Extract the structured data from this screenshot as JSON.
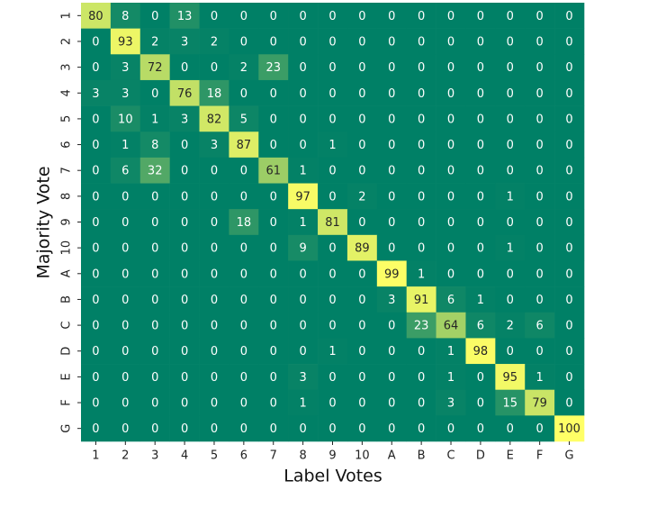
{
  "chart_data": {
    "type": "heatmap",
    "colormap": "summer",
    "x_label": "Label Votes",
    "y_label": "Majority Vote",
    "x_categories": [
      "1",
      "2",
      "3",
      "4",
      "5",
      "6",
      "7",
      "8",
      "9",
      "10",
      "A",
      "B",
      "C",
      "D",
      "E",
      "F",
      "G"
    ],
    "y_categories": [
      "1",
      "2",
      "3",
      "4",
      "5",
      "6",
      "7",
      "8",
      "9",
      "10",
      "A",
      "B",
      "C",
      "D",
      "E",
      "F",
      "G"
    ],
    "values": [
      [
        80,
        8,
        0,
        13,
        0,
        0,
        0,
        0,
        0,
        0,
        0,
        0,
        0,
        0,
        0,
        0,
        0
      ],
      [
        0,
        93,
        2,
        3,
        2,
        0,
        0,
        0,
        0,
        0,
        0,
        0,
        0,
        0,
        0,
        0,
        0
      ],
      [
        0,
        3,
        72,
        0,
        0,
        2,
        23,
        0,
        0,
        0,
        0,
        0,
        0,
        0,
        0,
        0,
        0
      ],
      [
        3,
        3,
        0,
        76,
        18,
        0,
        0,
        0,
        0,
        0,
        0,
        0,
        0,
        0,
        0,
        0,
        0
      ],
      [
        0,
        10,
        1,
        3,
        82,
        5,
        0,
        0,
        0,
        0,
        0,
        0,
        0,
        0,
        0,
        0,
        0
      ],
      [
        0,
        1,
        8,
        0,
        3,
        87,
        0,
        0,
        1,
        0,
        0,
        0,
        0,
        0,
        0,
        0,
        0
      ],
      [
        0,
        6,
        32,
        0,
        0,
        0,
        61,
        1,
        0,
        0,
        0,
        0,
        0,
        0,
        0,
        0,
        0
      ],
      [
        0,
        0,
        0,
        0,
        0,
        0,
        0,
        97,
        0,
        2,
        0,
        0,
        0,
        0,
        1,
        0,
        0
      ],
      [
        0,
        0,
        0,
        0,
        0,
        18,
        0,
        1,
        81,
        0,
        0,
        0,
        0,
        0,
        0,
        0,
        0
      ],
      [
        0,
        0,
        0,
        0,
        0,
        0,
        0,
        9,
        0,
        89,
        0,
        0,
        0,
        0,
        1,
        0,
        0
      ],
      [
        0,
        0,
        0,
        0,
        0,
        0,
        0,
        0,
        0,
        0,
        99,
        1,
        0,
        0,
        0,
        0,
        0
      ],
      [
        0,
        0,
        0,
        0,
        0,
        0,
        0,
        0,
        0,
        0,
        3,
        91,
        6,
        1,
        0,
        0,
        0
      ],
      [
        0,
        0,
        0,
        0,
        0,
        0,
        0,
        0,
        0,
        0,
        0,
        23,
        64,
        6,
        2,
        6,
        0
      ],
      [
        0,
        0,
        0,
        0,
        0,
        0,
        0,
        0,
        1,
        0,
        0,
        0,
        1,
        98,
        0,
        0,
        0
      ],
      [
        0,
        0,
        0,
        0,
        0,
        0,
        0,
        3,
        0,
        0,
        0,
        0,
        1,
        0,
        95,
        1,
        0
      ],
      [
        0,
        0,
        0,
        0,
        0,
        0,
        0,
        1,
        0,
        0,
        0,
        0,
        3,
        0,
        15,
        79,
        0
      ],
      [
        0,
        0,
        0,
        0,
        0,
        0,
        0,
        0,
        0,
        0,
        0,
        0,
        0,
        0,
        0,
        0,
        100
      ]
    ]
  }
}
